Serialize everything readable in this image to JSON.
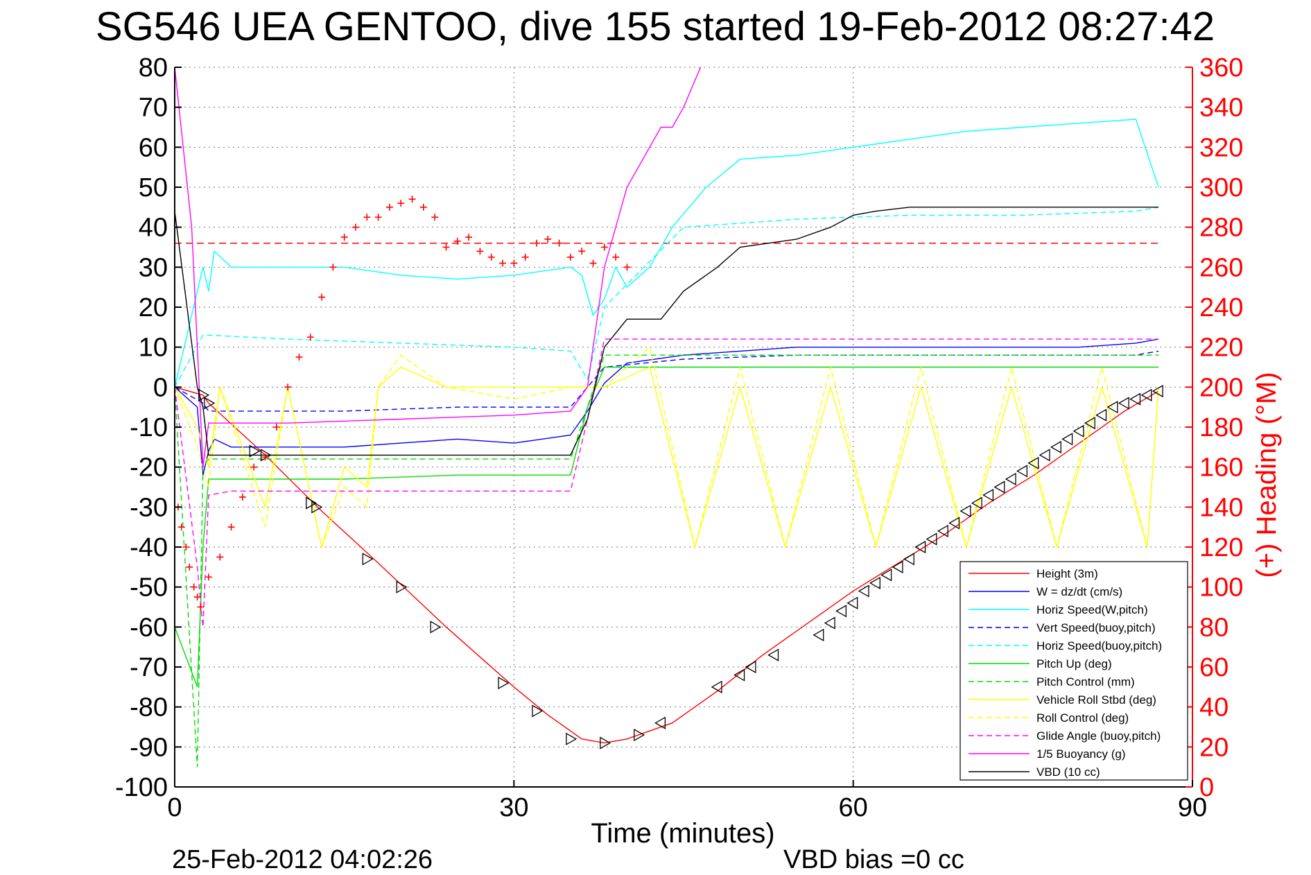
{
  "title": "SG546 UEA GENTOO, dive 155 started 19-Feb-2012 08:27:42",
  "footer": {
    "timestamp": "25-Feb-2012 04:02:26",
    "vbd_bias": "VBD bias =0 cc"
  },
  "colors": {
    "height": "#ff0000",
    "heading": "#ff0000",
    "w": "#0000ff",
    "horiz_speed": "#00ffff",
    "vert_speed_buoy": "#0000ff",
    "horiz_speed_buoy": "#00ffff",
    "pitch_up": "#00dd00",
    "pitch_control": "#00dd00",
    "roll": "#ffff00",
    "roll_control": "#ffff00",
    "glide_angle": "#ff00ff",
    "buoyancy": "#ff00ff",
    "vbd": "#000000"
  },
  "chart_data": {
    "type": "line",
    "title": "SG546 UEA GENTOO, dive 155 started 19-Feb-2012 08:27:42",
    "xlabel": "Time (minutes)",
    "ylabel": "",
    "y2label": "(+) Heading (°M)",
    "xlim": [
      0,
      90
    ],
    "ylim": [
      -100,
      80
    ],
    "y2lim": [
      0,
      360
    ],
    "xticks": [
      0,
      30,
      60,
      90
    ],
    "yticks": [
      -100,
      -90,
      -80,
      -70,
      -60,
      -50,
      -40,
      -30,
      -20,
      -10,
      0,
      10,
      20,
      30,
      40,
      50,
      60,
      70,
      80
    ],
    "y2ticks": [
      0,
      20,
      40,
      60,
      80,
      100,
      120,
      140,
      160,
      180,
      200,
      220,
      240,
      260,
      280,
      300,
      320,
      340,
      360
    ],
    "grid": true,
    "legend_position": "bottom-right",
    "reference_line": {
      "y": 36,
      "style": "dashed",
      "color": "#ff0000"
    },
    "series": [
      {
        "name": "Height (3m)",
        "style": "solid",
        "x": [
          0,
          2.5,
          3,
          8,
          13,
          18,
          24,
          30,
          33,
          36,
          38,
          40,
          44,
          48,
          52,
          56,
          60,
          64,
          68,
          72,
          76,
          80,
          84,
          87
        ],
        "y": [
          0,
          -2,
          -4,
          -17,
          -31,
          -44,
          -60,
          -75,
          -82,
          -88,
          -89,
          -88,
          -84,
          -76,
          -67,
          -59,
          -51,
          -44,
          -37,
          -29,
          -22,
          -14,
          -6,
          -1
        ]
      },
      {
        "name": "W = dz/dt (cm/s)",
        "style": "solid",
        "x": [
          0,
          2,
          2.5,
          3,
          3.5,
          5,
          10,
          15,
          20,
          25,
          30,
          35,
          36.5,
          38,
          40,
          45,
          50,
          55,
          60,
          65,
          70,
          75,
          80,
          85,
          87
        ],
        "y": [
          0,
          -5,
          -22,
          -16,
          -13,
          -15,
          -15,
          -15,
          -14,
          -13,
          -14,
          -12,
          -6,
          1,
          6,
          8,
          9,
          10,
          10,
          10,
          10,
          10,
          10,
          11,
          12
        ]
      },
      {
        "name": "Horiz Speed(W,pitch)",
        "style": "solid",
        "x": [
          0,
          2.5,
          3,
          3.5,
          5,
          10,
          15,
          20,
          25,
          30,
          35,
          36,
          37,
          38,
          39,
          40,
          42,
          44,
          47,
          50,
          55,
          60,
          65,
          70,
          75,
          80,
          85,
          87
        ],
        "y": [
          0,
          30,
          24,
          34,
          30,
          30,
          30,
          28,
          27,
          28,
          30,
          28,
          18,
          22,
          30,
          25,
          30,
          40,
          50,
          57,
          58,
          60,
          62,
          64,
          65,
          66,
          67,
          50
        ]
      },
      {
        "name": "Vert Speed(buoy,pitch)",
        "style": "dashed",
        "x": [
          0,
          2.5,
          3,
          5,
          15,
          25,
          35,
          36.5,
          38,
          45,
          55,
          65,
          75,
          85,
          87
        ],
        "y": [
          0,
          -4,
          -6,
          -6,
          -6,
          -5,
          -5,
          0,
          5,
          7,
          8,
          8,
          8,
          8,
          9
        ]
      },
      {
        "name": "Horiz Speed(buoy,pitch)",
        "style": "dashed",
        "x": [
          0,
          2.5,
          3,
          10,
          20,
          30,
          35,
          36.5,
          38,
          45,
          55,
          65,
          75,
          85,
          87
        ],
        "y": [
          0,
          13,
          13,
          12,
          11,
          10,
          9,
          2,
          20,
          40,
          42,
          43,
          43,
          44,
          45
        ]
      },
      {
        "name": "Pitch Up (deg)",
        "style": "solid",
        "x": [
          0,
          2,
          2.5,
          3,
          5,
          15,
          25,
          35,
          36.5,
          38,
          45,
          55,
          65,
          75,
          85,
          87
        ],
        "y": [
          -60,
          -75,
          -40,
          -23,
          -23,
          -23,
          -22,
          -22,
          -5,
          5,
          5,
          5,
          5,
          5,
          5,
          5
        ]
      },
      {
        "name": "Pitch Control (mm)",
        "style": "dashed",
        "x": [
          0,
          2,
          2.5,
          3,
          5,
          15,
          25,
          35,
          36.5,
          38,
          45,
          55,
          65,
          75,
          85,
          87
        ],
        "y": [
          0,
          -95,
          -20,
          -18,
          -18,
          -18,
          -18,
          -18,
          -5,
          8,
          8,
          8,
          8,
          8,
          8,
          8
        ]
      },
      {
        "name": "Vehicle Roll Stbd (deg)",
        "style": "solid",
        "x": [
          0,
          2,
          3,
          4,
          8,
          10,
          13,
          15,
          17,
          18,
          20,
          24,
          30,
          35,
          38,
          42,
          46,
          50,
          54,
          58,
          62,
          66,
          70,
          74,
          78,
          82,
          86,
          87
        ],
        "y": [
          0,
          -10,
          -20,
          0,
          -30,
          0,
          -40,
          -20,
          -25,
          0,
          5,
          0,
          0,
          0,
          0,
          5,
          -40,
          0,
          -40,
          0,
          -40,
          0,
          -40,
          0,
          -40,
          0,
          -40,
          0
        ]
      },
      {
        "name": "Roll Control (deg)",
        "style": "dashed",
        "x": [
          0,
          2,
          3,
          4,
          8,
          10,
          13,
          15,
          17,
          18,
          20,
          24,
          30,
          35,
          38,
          42,
          46,
          50,
          54,
          58,
          62,
          66,
          70,
          74,
          78,
          82,
          86,
          87
        ],
        "y": [
          0,
          -15,
          -25,
          0,
          -35,
          0,
          -40,
          -25,
          -30,
          0,
          8,
          0,
          -3,
          0,
          0,
          10,
          -40,
          5,
          -40,
          5,
          -40,
          5,
          -40,
          5,
          -40,
          5,
          -40,
          0
        ]
      },
      {
        "name": "Glide Angle (buoy,pitch)",
        "style": "dashed",
        "x": [
          0,
          2,
          2.5,
          3,
          5,
          15,
          25,
          35,
          36.5,
          38,
          45,
          55,
          65,
          75,
          85,
          87
        ],
        "y": [
          0,
          -45,
          -60,
          -27,
          -26,
          -26,
          -26,
          -26,
          -8,
          12,
          12,
          12,
          12,
          12,
          12,
          12
        ]
      },
      {
        "name": "1/5 Buoyancy (g)",
        "style": "solid",
        "x": [
          0,
          1.5,
          2.5,
          3,
          10,
          20,
          30,
          35,
          36.5,
          38,
          40,
          42,
          43,
          44,
          45,
          46.5
        ],
        "y": [
          80,
          40,
          -20,
          -9,
          -9,
          -8,
          -7,
          -6,
          0,
          30,
          50,
          60,
          65,
          65,
          70,
          80
        ]
      },
      {
        "name": "VBD (10 cc)",
        "style": "solid",
        "x": [
          0,
          2,
          2.5,
          3,
          10,
          20,
          30,
          35,
          36.5,
          38,
          40,
          43,
          45,
          48,
          50,
          55,
          58,
          60,
          62,
          65,
          70,
          80,
          85,
          87
        ],
        "y": [
          44,
          0,
          -5,
          -17,
          -17,
          -17,
          -17,
          -17,
          -8,
          10,
          17,
          17,
          24,
          30,
          35,
          37,
          40,
          43,
          44,
          45,
          45,
          45,
          45,
          45
        ]
      }
    ],
    "heading_series": {
      "name": "(+) Heading (°M)",
      "marker": "+",
      "x": [
        0.3,
        0.6,
        1,
        1.3,
        1.7,
        2,
        2.3,
        3,
        4,
        5,
        6,
        7,
        8,
        9,
        10,
        11,
        12,
        13,
        14,
        15,
        16,
        17,
        18,
        19,
        20,
        21,
        22,
        23,
        24,
        25,
        26,
        27,
        28,
        29,
        30,
        31,
        32,
        33,
        34,
        35,
        36,
        37,
        38,
        39,
        40
      ],
      "y": [
        140,
        130,
        120,
        110,
        100,
        95,
        90,
        105,
        115,
        130,
        145,
        160,
        165,
        180,
        200,
        215,
        225,
        245,
        260,
        275,
        280,
        285,
        285,
        290,
        292,
        294,
        290,
        285,
        270,
        273,
        275,
        268,
        265,
        262,
        262,
        265,
        272,
        274,
        272,
        265,
        268,
        262,
        270,
        265,
        260
      ]
    },
    "markers": {
      "name": "Height (3m)",
      "marker": "triangle",
      "x": [
        2.5,
        3,
        7,
        8,
        12,
        12.5,
        17,
        20,
        23,
        29,
        32,
        35,
        38,
        41,
        43,
        48,
        50,
        51,
        53,
        57,
        58,
        59,
        60,
        61,
        62,
        63,
        64,
        65,
        66,
        67,
        68,
        69,
        70,
        71,
        72,
        73,
        74,
        75,
        76,
        77,
        78,
        79,
        80,
        81,
        82,
        83,
        84,
        85,
        86,
        87
      ],
      "y": [
        -2,
        -4,
        -16,
        -17,
        -29,
        -30,
        -43,
        -50,
        -60,
        -74,
        -81,
        -88,
        -89,
        -87,
        -84,
        -75,
        -72,
        -70,
        -67,
        -62,
        -59,
        -56,
        -54,
        -51,
        -49,
        -47,
        -45,
        -43,
        -40,
        -38,
        -36,
        -34,
        -31,
        -29,
        -27,
        -25,
        -23,
        -21,
        -19,
        -17,
        -15,
        -13,
        -11,
        -9,
        -7,
        -5,
        -4,
        -3,
        -2,
        -1
      ]
    }
  }
}
